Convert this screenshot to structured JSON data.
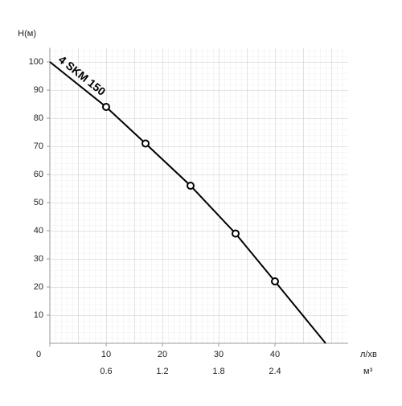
{
  "chart_data": {
    "type": "line",
    "ylabel": "H(м)",
    "xlabel": "л/хв",
    "x2label": "м³",
    "xlim": [
      0,
      53
    ],
    "xticks": [
      0,
      10,
      20,
      30,
      40
    ],
    "x2lim": [
      0,
      3.18
    ],
    "x2ticks": [
      0.6,
      1.2,
      1.8,
      2.4
    ],
    "ylim": [
      0,
      105
    ],
    "yticks": [
      10,
      20,
      30,
      40,
      50,
      60,
      70,
      80,
      90,
      100
    ],
    "grid": true,
    "series": [
      {
        "name": "4 SKM 150",
        "color": "#000000",
        "x": [
          0,
          10,
          17,
          25,
          33,
          40,
          49
        ],
        "values": [
          100,
          84,
          71,
          56,
          39,
          22,
          0
        ]
      }
    ],
    "points": {
      "x": [
        10,
        17,
        25,
        33,
        40
      ],
      "values": [
        84,
        71,
        56,
        39,
        22
      ]
    }
  }
}
